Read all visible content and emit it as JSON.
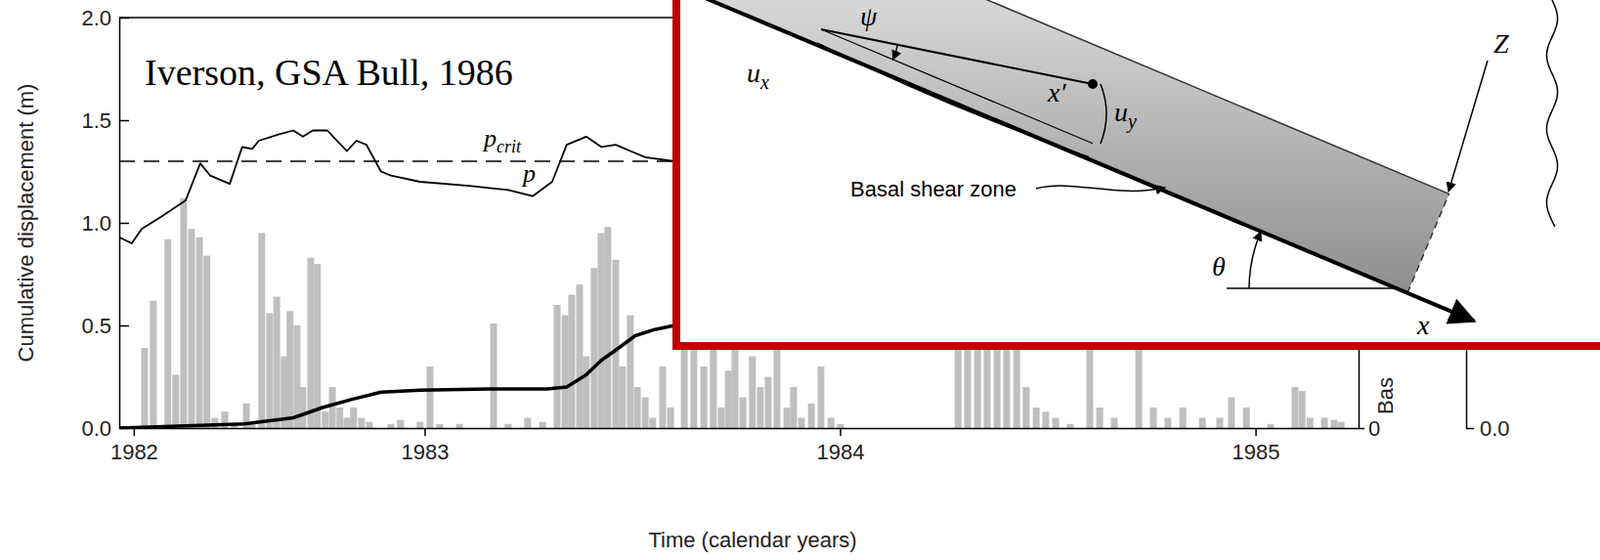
{
  "chart_data": {
    "type": "line",
    "annotations": [
      "Iverson, GSA Bull, 1986"
    ],
    "x_label": "Time (calendar years)",
    "y_label": "Cumulative displacement (m)",
    "y3_label": "Bas",
    "xlim": [
      1982.265,
      1985.248
    ],
    "xticks": [
      {
        "value": 1982.3,
        "label": "1982"
      },
      1983,
      1984,
      1985
    ],
    "ylim": [
      0,
      2
    ],
    "yticks": [
      {
        "value": 0,
        "label": "0.0"
      },
      {
        "value": 0.5,
        "label": "0.5"
      },
      {
        "value": 1,
        "label": "1.0"
      },
      {
        "value": 1.5,
        "label": "1.5"
      },
      {
        "value": 2,
        "label": "2.0"
      }
    ],
    "y2lim": [
      0,
      2
    ],
    "y2ticks": [
      0
    ],
    "y3lim": [
      0,
      2
    ],
    "y3ticks": [
      {
        "value": 0,
        "label": "0.0"
      }
    ],
    "series": [
      {
        "type": "bar",
        "color": "#bfbfbf",
        "axis": "y2",
        "x": [
          1982.272,
          1982.326,
          1982.347,
          1982.382,
          1982.401,
          1982.42,
          1982.439,
          1982.458,
          1982.476,
          1982.495,
          1982.519,
          1982.542,
          1982.571,
          1982.585,
          1982.608,
          1982.627,
          1982.644,
          1982.662,
          1982.676,
          1982.693,
          1982.707,
          1982.726,
          1982.742,
          1982.761,
          1982.778,
          1982.796,
          1982.813,
          1982.829,
          1982.848,
          1982.867,
          1982.919,
          1982.942,
          1982.989,
          1983.013,
          1983.036,
          1983.084,
          1983.166,
          1983.201,
          1983.248,
          1983.284,
          1983.319,
          1983.338,
          1983.354,
          1983.373,
          1983.389,
          1983.408,
          1983.425,
          1983.441,
          1983.46,
          1983.476,
          1983.495,
          1983.512,
          1983.531,
          1983.549,
          1983.573,
          1983.592,
          1983.625,
          1983.648,
          1983.672,
          1983.695,
          1983.714,
          1983.731,
          1983.747,
          1983.766,
          1983.789,
          1983.808,
          1983.827,
          1983.848,
          1983.872,
          1983.888,
          1983.907,
          1983.931,
          1983.954,
          1983.978,
          1984.001,
          1984.284,
          1984.307,
          1984.331,
          1984.354,
          1984.378,
          1984.401,
          1984.425,
          1984.448,
          1984.472,
          1984.495,
          1984.519,
          1984.554,
          1984.601,
          1984.625,
          1984.66,
          1984.719,
          1984.754,
          1984.789,
          1984.825,
          1984.872,
          1984.914,
          1984.942,
          1984.978,
          1985.036,
          1985.095,
          1985.112,
          1985.131,
          1985.166,
          1985.189,
          1985.206
        ],
        "values": [
          0.01,
          0.39,
          0.62,
          0.92,
          0.26,
          1.12,
          0.97,
          0.93,
          0.84,
          0.05,
          0.08,
          0.02,
          0.12,
          0.03,
          0.95,
          0.56,
          0.64,
          0.35,
          0.57,
          0.5,
          0.2,
          0.83,
          0.8,
          0.08,
          0.2,
          0.1,
          0.05,
          0.1,
          0.05,
          0.03,
          0.02,
          0.04,
          0.03,
          0.3,
          0.02,
          0.02,
          0.51,
          0.02,
          0.05,
          0.03,
          0.6,
          0.55,
          0.65,
          0.7,
          0.35,
          0.78,
          0.95,
          0.98,
          0.82,
          0.3,
          0.55,
          0.2,
          0.15,
          0.05,
          0.3,
          0.1,
          0.55,
          0.5,
          0.3,
          0.45,
          0.1,
          0.28,
          0.5,
          0.15,
          0.35,
          0.2,
          0.25,
          0.4,
          0.1,
          0.2,
          0.05,
          0.12,
          0.3,
          0.05,
          0.02,
          0.5,
          0.5,
          0.6,
          0.5,
          0.5,
          0.6,
          0.45,
          0.2,
          0.1,
          0.08,
          0.05,
          0.02,
          0.45,
          0.1,
          0.05,
          0.45,
          0.1,
          0.05,
          0.1,
          0.05,
          0.05,
          0.15,
          0.1,
          0.02,
          0.2,
          0.18,
          0.05,
          0.05,
          0.04,
          0.03
        ]
      },
      {
        "name": "pcrit",
        "type": "line",
        "line_style": "dashed",
        "color": "#000000",
        "axis": "y3",
        "x": [
          1982.265,
          1985.248
        ],
        "values": [
          1.3,
          1.3
        ]
      },
      {
        "name": "p",
        "type": "line",
        "line_style": "solid",
        "color": "#000000",
        "axis": "y3",
        "x": [
          1982.265,
          1982.295,
          1982.319,
          1982.366,
          1982.425,
          1982.46,
          1982.484,
          1982.531,
          1982.561,
          1982.585,
          1982.601,
          1982.648,
          1982.684,
          1982.707,
          1982.731,
          1982.766,
          1982.789,
          1982.813,
          1982.836,
          1982.86,
          1982.895,
          1982.919,
          1982.989,
          1983.107,
          1983.201,
          1983.26,
          1983.307,
          1983.342,
          1983.389,
          1983.425,
          1983.46,
          1983.495,
          1983.531,
          1983.601
        ],
        "values": [
          0.93,
          0.9,
          0.97,
          1.03,
          1.11,
          1.29,
          1.23,
          1.19,
          1.37,
          1.36,
          1.4,
          1.43,
          1.45,
          1.42,
          1.45,
          1.45,
          1.4,
          1.35,
          1.4,
          1.38,
          1.25,
          1.23,
          1.2,
          1.18,
          1.16,
          1.13,
          1.2,
          1.38,
          1.42,
          1.37,
          1.38,
          1.35,
          1.32,
          1.3
        ]
      },
      {
        "type": "line",
        "line_style": "solid",
        "color": "#000000",
        "x": [
          1982.265,
          1982.566,
          1982.684,
          1982.754,
          1982.825,
          1982.895,
          1982.989,
          1983.154,
          1983.295,
          1983.342,
          1983.389,
          1983.425,
          1983.46,
          1983.507,
          1983.554,
          1983.601
        ],
        "values": [
          0,
          0.02,
          0.05,
          0.1,
          0.14,
          0.175,
          0.185,
          0.19,
          0.19,
          0.2,
          0.26,
          0.33,
          0.38,
          0.45,
          0.48,
          0.5
        ]
      }
    ]
  },
  "inset": {
    "labels": [
      {
        "text": "u",
        "sub": "x"
      },
      "ψ",
      "x′",
      {
        "text": "u",
        "sub": "y"
      },
      "Z",
      "Basal shear zone",
      "θ",
      "x"
    ]
  }
}
